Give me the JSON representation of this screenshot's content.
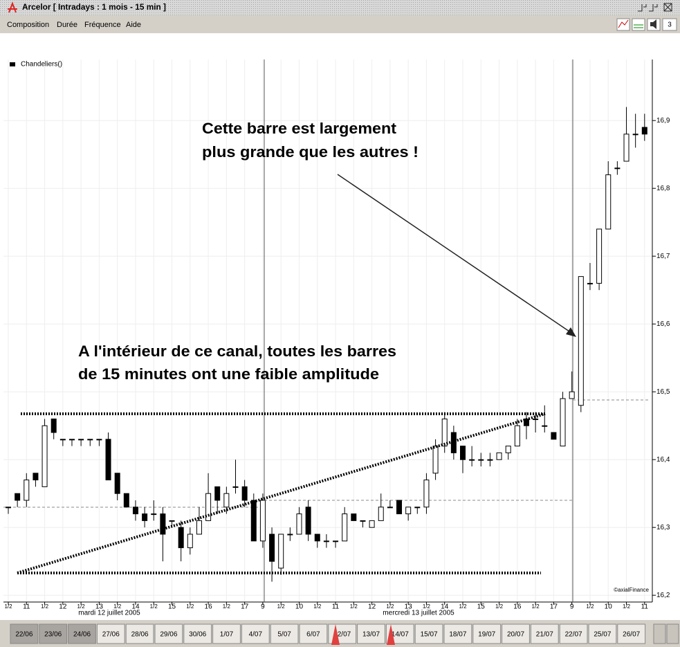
{
  "window": {
    "title": "Arcelor  [ Intradays : 1 mois - 15 min ]",
    "menu": [
      "Composition",
      "Durée",
      "Fréquence",
      "Aide"
    ],
    "tabs": [
      "22/06",
      "23/06",
      "24/06",
      "27/06",
      "28/06",
      "29/06",
      "30/06",
      "1/07",
      "4/07",
      "5/07",
      "6/07",
      "12/07",
      "13/07",
      "14/07",
      "15/07",
      "18/07",
      "19/07",
      "20/07",
      "21/07",
      "22/07",
      "25/07",
      "26/07"
    ]
  },
  "chart_data": {
    "type": "candlestick",
    "legend": "Chandeliers()",
    "categories": [
      "1/2",
      null,
      "11",
      null,
      "1/2",
      null,
      "12",
      null,
      "1/2",
      null,
      "13",
      null,
      "1/2",
      null,
      "14",
      null,
      "1/2",
      null,
      "15",
      null,
      "1/2",
      null,
      "16",
      null,
      "1/2",
      null,
      "17",
      null,
      "9",
      null,
      "1/2",
      null,
      "10",
      null,
      "1/2",
      null,
      "11",
      null,
      "1/2",
      null,
      "12",
      null,
      "1/2",
      null,
      "13",
      null,
      "1/2",
      null,
      "14",
      null,
      "1/2",
      null,
      "15",
      null,
      "1/2",
      null,
      "16",
      null,
      "1/2",
      null,
      "17",
      null,
      "9",
      null,
      "1/2",
      null,
      "10",
      null,
      "1/2",
      null,
      "11"
    ],
    "open": [
      16.33,
      16.35,
      16.34,
      16.38,
      16.36,
      16.46,
      16.43,
      16.43,
      16.43,
      16.43,
      16.43,
      16.43,
      16.38,
      16.35,
      16.33,
      16.32,
      16.32,
      16.32,
      16.31,
      16.3,
      16.27,
      16.29,
      16.31,
      16.36,
      16.33,
      16.36,
      16.36,
      16.34,
      16.28,
      16.29,
      16.24,
      16.29,
      16.29,
      16.33,
      16.29,
      16.28,
      16.28,
      16.28,
      16.32,
      16.31,
      16.3,
      16.31,
      16.33,
      16.34,
      16.32,
      16.33,
      16.33,
      16.38,
      16.42,
      16.44,
      16.42,
      16.4,
      16.4,
      16.4,
      16.4,
      16.41,
      16.42,
      16.46,
      16.46,
      16.45,
      16.44,
      16.42,
      16.49,
      16.48,
      16.66,
      16.66,
      16.74,
      16.83,
      16.84,
      16.88,
      16.89
    ],
    "high": [
      16.33,
      16.35,
      16.38,
      16.38,
      16.46,
      16.46,
      16.43,
      16.43,
      16.43,
      16.43,
      16.43,
      16.44,
      16.38,
      16.35,
      16.34,
      16.33,
      16.34,
      16.33,
      16.31,
      16.31,
      16.3,
      16.33,
      16.38,
      16.36,
      16.36,
      16.4,
      16.37,
      16.35,
      16.35,
      16.3,
      16.29,
      16.3,
      16.33,
      16.34,
      16.29,
      16.29,
      16.28,
      16.33,
      16.32,
      16.31,
      16.31,
      16.35,
      16.34,
      16.34,
      16.33,
      16.33,
      16.38,
      16.43,
      16.47,
      16.45,
      16.42,
      16.42,
      16.41,
      16.41,
      16.41,
      16.42,
      16.46,
      16.47,
      16.47,
      16.48,
      16.44,
      16.5,
      16.53,
      16.67,
      16.69,
      16.74,
      16.84,
      16.84,
      16.92,
      16.91,
      16.91
    ],
    "low": [
      16.32,
      16.33,
      16.33,
      16.36,
      16.36,
      16.43,
      16.42,
      16.42,
      16.42,
      16.42,
      16.42,
      16.37,
      16.34,
      16.33,
      16.31,
      16.3,
      16.31,
      16.25,
      16.3,
      16.25,
      16.26,
      16.29,
      16.31,
      16.32,
      16.32,
      16.35,
      16.33,
      16.28,
      16.27,
      16.22,
      16.23,
      16.28,
      16.29,
      16.28,
      16.27,
      16.27,
      16.27,
      16.28,
      16.31,
      16.3,
      16.3,
      16.31,
      16.33,
      16.32,
      16.31,
      16.32,
      16.32,
      16.37,
      16.41,
      16.4,
      16.38,
      16.39,
      16.39,
      16.39,
      16.4,
      16.4,
      16.42,
      16.43,
      16.44,
      16.44,
      16.43,
      16.42,
      16.49,
      16.47,
      16.65,
      16.65,
      16.74,
      16.82,
      16.84,
      16.86,
      16.87
    ],
    "close": [
      16.33,
      16.34,
      16.37,
      16.37,
      16.45,
      16.44,
      16.43,
      16.43,
      16.43,
      16.43,
      16.43,
      16.37,
      16.35,
      16.33,
      16.32,
      16.31,
      16.32,
      16.29,
      16.31,
      16.27,
      16.29,
      16.31,
      16.35,
      16.34,
      16.35,
      16.36,
      16.34,
      16.28,
      16.34,
      16.25,
      16.29,
      16.29,
      16.32,
      16.29,
      16.28,
      16.28,
      16.28,
      16.32,
      16.31,
      16.31,
      16.31,
      16.33,
      16.33,
      16.32,
      16.33,
      16.33,
      16.37,
      16.42,
      16.46,
      16.41,
      16.4,
      16.4,
      16.4,
      16.4,
      16.41,
      16.42,
      16.45,
      16.45,
      16.46,
      16.45,
      16.43,
      16.49,
      16.5,
      16.67,
      16.66,
      16.74,
      16.82,
      16.83,
      16.88,
      16.88,
      16.88
    ],
    "ylim": [
      16.19,
      16.99
    ],
    "yticks": [
      {
        "value": 16.2,
        "label": "16,2"
      },
      {
        "value": 16.3,
        "label": "16,3"
      },
      {
        "value": 16.4,
        "label": "16,4"
      },
      {
        "value": 16.5,
        "label": "16,5"
      },
      {
        "value": 16.6,
        "label": "16,6"
      },
      {
        "value": 16.7,
        "label": "16,7"
      },
      {
        "value": 16.8,
        "label": "16,8"
      },
      {
        "value": 16.9,
        "label": "16,9"
      }
    ],
    "grid": true,
    "up_color": "#ffffff",
    "down_color": "#000000",
    "annotations": [
      "Cette barre est largement",
      "plus grande que les autres !",
      "A l'intérieur de ce canal, toutes les barres",
      "de 15 minutes ont une faible amplitude"
    ],
    "day_labels": [
      "mardi 12 juillet 2005",
      "mercredi 13 juillet 2005"
    ],
    "credit": "©axialFinance"
  }
}
